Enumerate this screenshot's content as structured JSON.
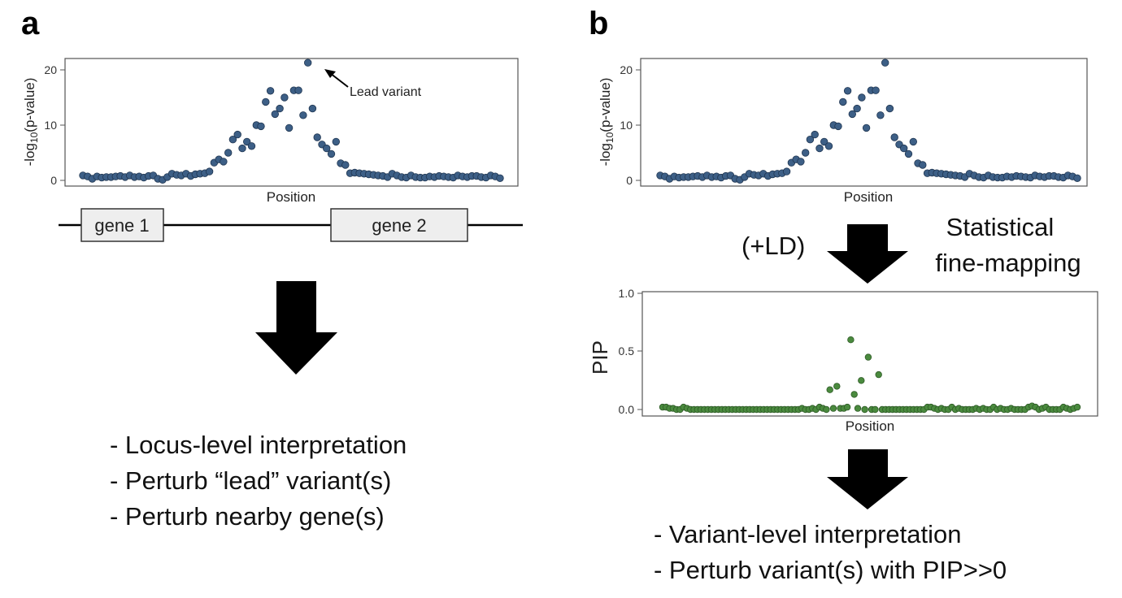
{
  "panel_a": {
    "letter": "a",
    "plot": {
      "ylabel": "-log10(p-value)",
      "yticks": [
        "0",
        "10",
        "20"
      ],
      "xlabel": "Position",
      "annotation": "Lead variant"
    },
    "genes": [
      "gene 1",
      "gene 2"
    ],
    "bullets": [
      "- Locus-level interpretation",
      "- Perturb “lead” variant(s)",
      "- Perturb nearby gene(s)"
    ]
  },
  "panel_b": {
    "letter": "b",
    "plot": {
      "ylabel": "-log10(p-value)",
      "yticks": [
        "0",
        "10",
        "20"
      ],
      "xlabel": "Position"
    },
    "arrow_left_label": "(+LD)",
    "arrow_right_label_lines": [
      "Statistical",
      "fine-mapping"
    ],
    "pip_plot": {
      "ylabel": "PIP",
      "yticks": [
        "0.0",
        "0.5",
        "1.0"
      ],
      "xlabel": "Position"
    },
    "bullets": [
      "- Variant-level interpretation",
      "- Perturb variant(s) with PIP>>0"
    ]
  },
  "colors": {
    "gwas_point": "#3d5f86",
    "pip_point": "#4a8a3e",
    "arrow": "#000000",
    "gene_box": "#eeeeee"
  },
  "chart_data": [
    {
      "type": "scatter",
      "xlabel": "Position",
      "ylabel": "-log10(p-value)",
      "ylim": [
        -1,
        22
      ],
      "x": [
        0,
        1,
        2,
        3,
        4,
        5,
        6,
        7,
        8,
        9,
        10,
        11,
        12,
        13,
        14,
        15,
        16,
        17,
        18,
        19,
        20,
        21,
        22,
        23,
        24,
        25,
        26,
        27,
        28,
        29,
        30,
        31,
        32,
        33,
        34,
        35,
        36,
        37,
        38,
        39,
        40,
        41,
        42,
        43,
        44,
        45,
        46,
        47,
        48,
        49,
        50,
        51,
        52,
        53,
        54,
        55,
        56,
        57,
        58,
        59,
        60,
        61,
        62,
        63,
        64,
        65,
        66,
        67,
        68,
        69,
        70,
        71,
        72,
        73,
        74,
        75,
        76,
        77,
        78,
        79,
        80,
        81,
        82,
        83,
        84,
        85,
        86,
        87,
        88,
        89
      ],
      "y": [
        0.9,
        0.7,
        0.3,
        0.7,
        0.5,
        0.6,
        0.6,
        0.7,
        0.8,
        0.6,
        0.9,
        0.6,
        0.7,
        0.5,
        0.8,
        0.9,
        0.3,
        0.1,
        0.6,
        1.2,
        1.0,
        0.9,
        1.2,
        0.8,
        1.1,
        1.2,
        1.3,
        1.6,
        3.2,
        3.8,
        3.4,
        5.0,
        7.4,
        8.3,
        5.8,
        7.0,
        6.2,
        10.0,
        9.8,
        14.2,
        16.2,
        12.0,
        13.0,
        15.0,
        9.5,
        16.3,
        16.3,
        11.8,
        21.3,
        13.0,
        7.8,
        6.5,
        5.8,
        4.8,
        7.0,
        3.1,
        2.8,
        1.3,
        1.4,
        1.3,
        1.2,
        1.1,
        1.0,
        0.9,
        0.8,
        0.6,
        1.2,
        0.9,
        0.6,
        0.5,
        0.9,
        0.6,
        0.5,
        0.5,
        0.7,
        0.6,
        0.8,
        0.7,
        0.6,
        0.5,
        0.9,
        0.7,
        0.6,
        0.8,
        0.8,
        0.6,
        0.5,
        0.9,
        0.7,
        0.4
      ]
    },
    {
      "type": "scatter",
      "xlabel": "Position",
      "ylabel": "-log10(p-value)",
      "ylim": [
        -1,
        22
      ],
      "x": [
        0,
        1,
        2,
        3,
        4,
        5,
        6,
        7,
        8,
        9,
        10,
        11,
        12,
        13,
        14,
        15,
        16,
        17,
        18,
        19,
        20,
        21,
        22,
        23,
        24,
        25,
        26,
        27,
        28,
        29,
        30,
        31,
        32,
        33,
        34,
        35,
        36,
        37,
        38,
        39,
        40,
        41,
        42,
        43,
        44,
        45,
        46,
        47,
        48,
        49,
        50,
        51,
        52,
        53,
        54,
        55,
        56,
        57,
        58,
        59,
        60,
        61,
        62,
        63,
        64,
        65,
        66,
        67,
        68,
        69,
        70,
        71,
        72,
        73,
        74,
        75,
        76,
        77,
        78,
        79,
        80,
        81,
        82,
        83,
        84,
        85,
        86,
        87,
        88,
        89
      ],
      "y": [
        0.9,
        0.7,
        0.3,
        0.7,
        0.5,
        0.6,
        0.6,
        0.7,
        0.8,
        0.6,
        0.9,
        0.6,
        0.7,
        0.5,
        0.8,
        0.9,
        0.3,
        0.1,
        0.6,
        1.2,
        1.0,
        0.9,
        1.2,
        0.8,
        1.1,
        1.2,
        1.3,
        1.6,
        3.2,
        3.8,
        3.4,
        5.0,
        7.4,
        8.3,
        5.8,
        7.0,
        6.2,
        10.0,
        9.8,
        14.2,
        16.2,
        12.0,
        13.0,
        15.0,
        9.5,
        16.3,
        16.3,
        11.8,
        21.3,
        13.0,
        7.8,
        6.5,
        5.8,
        4.8,
        7.0,
        3.1,
        2.8,
        1.3,
        1.4,
        1.3,
        1.2,
        1.1,
        1.0,
        0.9,
        0.8,
        0.6,
        1.2,
        0.9,
        0.6,
        0.5,
        0.9,
        0.6,
        0.5,
        0.5,
        0.7,
        0.6,
        0.8,
        0.7,
        0.6,
        0.5,
        0.9,
        0.7,
        0.6,
        0.8,
        0.8,
        0.6,
        0.5,
        0.9,
        0.7,
        0.4
      ]
    },
    {
      "type": "scatter",
      "xlabel": "Position",
      "ylabel": "PIP",
      "ylim": [
        0,
        1
      ],
      "x": [
        0,
        1,
        2,
        3,
        4,
        5,
        6,
        7,
        8,
        9,
        10,
        11,
        12,
        13,
        14,
        15,
        16,
        17,
        18,
        19,
        20,
        21,
        22,
        23,
        24,
        25,
        26,
        27,
        28,
        29,
        30,
        31,
        32,
        33,
        34,
        35,
        36,
        37,
        38,
        39,
        40,
        41,
        42,
        43,
        44,
        45,
        46,
        47,
        48,
        49,
        50,
        51,
        52,
        53,
        54,
        55,
        56,
        57,
        58,
        59,
        60,
        61,
        62,
        63,
        64,
        65,
        66,
        67,
        68,
        69,
        70,
        71,
        72,
        73,
        74,
        75,
        76,
        77,
        78,
        79,
        80,
        81,
        82,
        83,
        84,
        85,
        86,
        87,
        88,
        89,
        90,
        91,
        92,
        93,
        94,
        95,
        96,
        97,
        98,
        99,
        100,
        101,
        102,
        103,
        104,
        105,
        106,
        107,
        108,
        109,
        110,
        111,
        112,
        113,
        114,
        115,
        116,
        117,
        118,
        119
      ],
      "y": [
        0.02,
        0.02,
        0.01,
        0.01,
        0.0,
        0.0,
        0.02,
        0.01,
        0.0,
        0.0,
        0.0,
        0.0,
        0.0,
        0.0,
        0.0,
        0.0,
        0.0,
        0.0,
        0.0,
        0.0,
        0.0,
        0.0,
        0.0,
        0.0,
        0.0,
        0.0,
        0.0,
        0.0,
        0.0,
        0.0,
        0.0,
        0.0,
        0.0,
        0.0,
        0.0,
        0.0,
        0.0,
        0.0,
        0.0,
        0.0,
        0.01,
        0.0,
        0.0,
        0.01,
        0.0,
        0.02,
        0.01,
        0.0,
        0.17,
        0.01,
        0.2,
        0.01,
        0.01,
        0.02,
        0.6,
        0.13,
        0.01,
        0.25,
        0.0,
        0.45,
        0.0,
        0.0,
        0.3,
        0.0,
        0.0,
        0.0,
        0.0,
        0.0,
        0.0,
        0.0,
        0.0,
        0.0,
        0.0,
        0.0,
        0.0,
        0.0,
        0.02,
        0.02,
        0.01,
        0.0,
        0.01,
        0.0,
        0.0,
        0.02,
        0.0,
        0.01,
        0.0,
        0.0,
        0.0,
        0.0,
        0.01,
        0.0,
        0.01,
        0.0,
        0.0,
        0.02,
        0.0,
        0.01,
        0.0,
        0.0,
        0.01,
        0.0,
        0.0,
        0.0,
        0.0,
        0.02,
        0.03,
        0.02,
        0.0,
        0.01,
        0.02,
        0.0,
        0.0,
        0.0,
        0.0,
        0.02,
        0.01,
        0.0,
        0.01,
        0.02
      ]
    }
  ]
}
